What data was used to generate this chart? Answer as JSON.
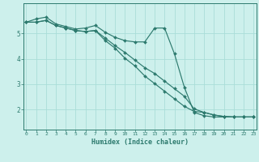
{
  "xlabel": "Humidex (Indice chaleur)",
  "bg_color": "#cdf0ec",
  "line_color": "#2d7a6e",
  "grid_color": "#aaddd8",
  "x_values": [
    0,
    1,
    2,
    3,
    4,
    5,
    6,
    7,
    8,
    9,
    10,
    11,
    12,
    13,
    14,
    15,
    16,
    17,
    18,
    19,
    20,
    21,
    22,
    23
  ],
  "line1": [
    5.45,
    5.58,
    5.65,
    5.38,
    5.28,
    5.18,
    5.22,
    5.32,
    5.05,
    4.85,
    4.72,
    4.67,
    4.67,
    5.22,
    5.22,
    4.2,
    2.88,
    1.88,
    1.75,
    1.7,
    1.7,
    1.7,
    1.7,
    1.7
  ],
  "line2": [
    5.45,
    5.45,
    5.52,
    5.32,
    5.22,
    5.12,
    5.08,
    5.12,
    4.82,
    4.52,
    4.25,
    3.95,
    3.65,
    3.42,
    3.12,
    2.82,
    2.52,
    2.02,
    1.88,
    1.78,
    1.72,
    1.7,
    1.7,
    1.7
  ],
  "line3": [
    5.45,
    5.45,
    5.52,
    5.32,
    5.22,
    5.12,
    5.08,
    5.12,
    4.72,
    4.42,
    4.02,
    3.72,
    3.32,
    3.02,
    2.72,
    2.42,
    2.12,
    1.92,
    1.88,
    1.78,
    1.72,
    1.7,
    1.7,
    1.7
  ],
  "ylim": [
    1.2,
    6.2
  ],
  "xlim": [
    -0.3,
    23.3
  ],
  "yticks": [
    2,
    3,
    4,
    5
  ],
  "xticks": [
    0,
    1,
    2,
    3,
    4,
    5,
    6,
    7,
    8,
    9,
    10,
    11,
    12,
    13,
    14,
    15,
    16,
    17,
    18,
    19,
    20,
    21,
    22,
    23
  ]
}
